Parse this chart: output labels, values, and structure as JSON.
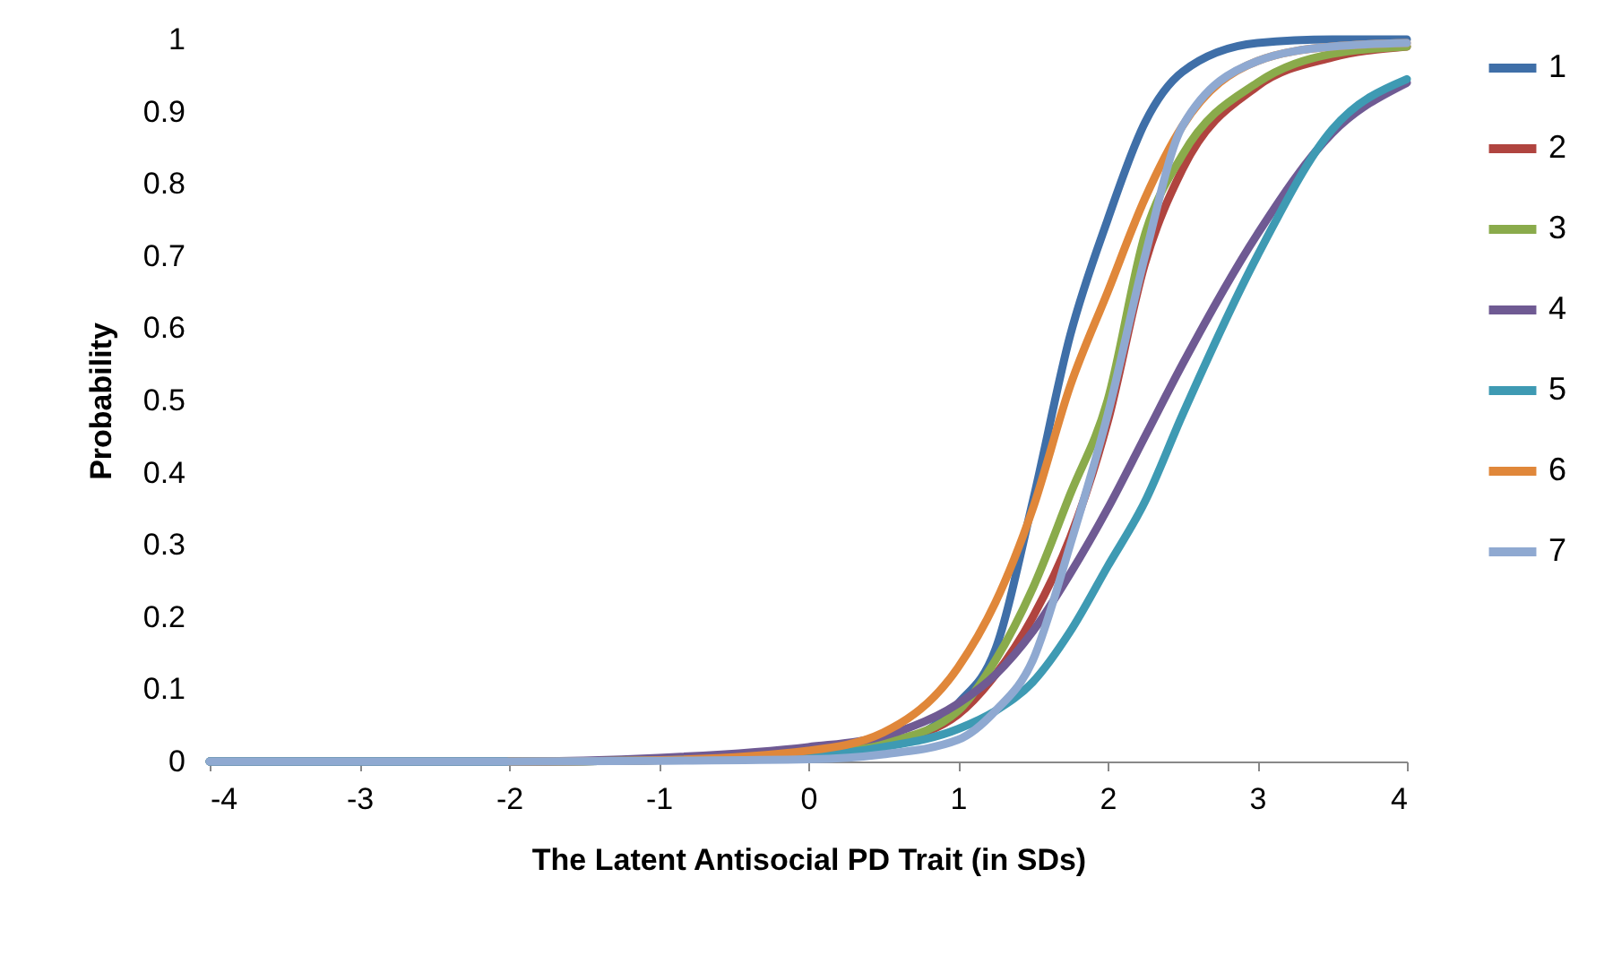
{
  "chart_data": {
    "type": "line",
    "xlabel": "The Latent Antisocial PD Trait (in SDs)",
    "ylabel": "Probability",
    "x": [
      -4,
      -3,
      -2,
      -1,
      0,
      0.5,
      1,
      1.25,
      1.5,
      1.75,
      2,
      2.25,
      2.5,
      3,
      3.5,
      4
    ],
    "xlim": [
      -4,
      4
    ],
    "xticks": [
      -4,
      -3,
      -2,
      -1,
      0,
      1,
      2,
      3,
      4
    ],
    "ylim": [
      0,
      1
    ],
    "yticks": [
      0,
      0.1,
      0.2,
      0.3,
      0.4,
      0.5,
      0.6,
      0.7,
      0.8,
      0.9,
      1
    ],
    "legend": "right",
    "series": [
      {
        "name": "1",
        "color": "#3f6fa8",
        "values": [
          0,
          0,
          0,
          0.002,
          0.01,
          0.02,
          0.08,
          0.155,
          0.36,
          0.59,
          0.75,
          0.885,
          0.955,
          0.995,
          1,
          1
        ]
      },
      {
        "name": "2",
        "color": "#b0443f",
        "values": [
          null,
          null,
          0,
          0.002,
          0.01,
          0.025,
          0.065,
          0.12,
          0.2,
          0.31,
          0.47,
          0.69,
          0.82,
          0.935,
          0.975,
          0.99
        ]
      },
      {
        "name": "3",
        "color": "#8aab4b",
        "values": [
          0,
          0,
          0,
          0.002,
          0.01,
          0.025,
          0.07,
          0.14,
          0.24,
          0.37,
          0.5,
          0.73,
          0.84,
          0.94,
          0.98,
          0.99
        ]
      },
      {
        "name": "4",
        "color": "#6f5a93",
        "values": [
          0,
          0,
          0,
          0.005,
          0.02,
          0.035,
          0.08,
          0.12,
          0.18,
          0.26,
          0.35,
          0.45,
          0.55,
          0.73,
          0.87,
          0.94
        ]
      },
      {
        "name": "5",
        "color": "#3e9ab3",
        "values": [
          0,
          0,
          0,
          0.002,
          0.008,
          0.02,
          0.045,
          0.07,
          0.11,
          0.18,
          0.27,
          0.36,
          0.48,
          0.7,
          0.875,
          0.945
        ]
      },
      {
        "name": "6",
        "color": "#e0873a",
        "values": [
          null,
          null,
          0,
          0.002,
          0.015,
          0.04,
          0.13,
          0.22,
          0.35,
          0.52,
          0.65,
          0.78,
          0.88,
          0.97,
          0.99,
          0.995
        ]
      },
      {
        "name": "7",
        "color": "#8fa9d1",
        "values": [
          0,
          0,
          0,
          0.001,
          0.003,
          0.01,
          0.03,
          0.07,
          0.14,
          0.3,
          0.48,
          0.7,
          0.88,
          0.97,
          0.99,
          0.995
        ]
      }
    ]
  }
}
